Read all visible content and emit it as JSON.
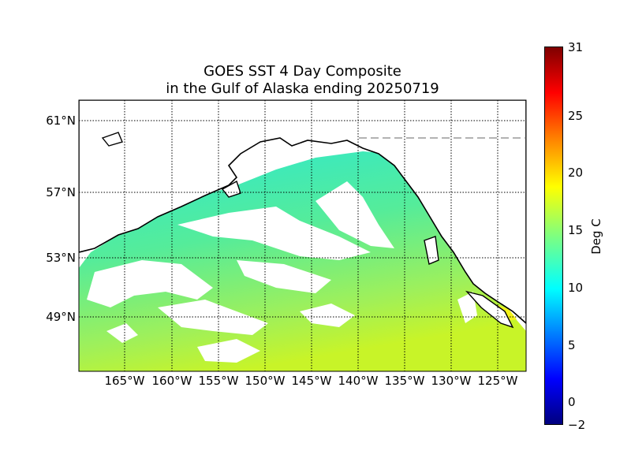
{
  "title_line1": "GOES SST 4 Day Composite",
  "title_line2": "in the Gulf of Alaska ending 20250719",
  "lat_labels": [
    "61°N",
    "57°N",
    "53°N",
    "49°N"
  ],
  "lon_labels": [
    "165°W",
    "160°W",
    "155°W",
    "150°W",
    "145°W",
    "140°W",
    "135°W",
    "130°W",
    "125°W"
  ],
  "colorbar": {
    "label": "Deg C",
    "ticks": [
      "31",
      "25",
      "20",
      "15",
      "10",
      "5",
      "0",
      "−2"
    ],
    "min": -2,
    "max": 31,
    "colors": [
      "#00007f",
      "#0000ff",
      "#007fff",
      "#00ffff",
      "#7fff7f",
      "#ffff00",
      "#ff7f00",
      "#ff0000",
      "#7f0000"
    ]
  },
  "map_colors": {
    "ocean_cool": "#22e6cc",
    "ocean_warm": "#b6f03a",
    "cloud_mask": "#ffffff",
    "land": "#ffffff",
    "coast": "#000000"
  }
}
